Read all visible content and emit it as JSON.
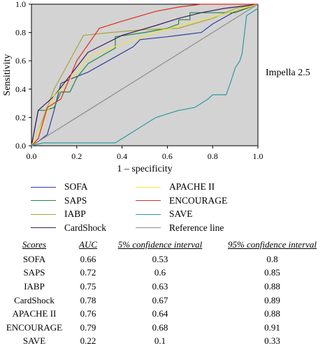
{
  "chart_data": {
    "type": "line",
    "title": "",
    "annotation": "Impella 2.5",
    "xlabel": "1 – specificity",
    "ylabel": "Sensitivity",
    "xlim": [
      0,
      1
    ],
    "ylim": [
      0,
      1
    ],
    "x_ticks": [
      "0.0",
      "0.2",
      "0.4",
      "0.6",
      "0.8",
      "1.0"
    ],
    "y_ticks": [
      "0.0",
      "0.2",
      "0.4",
      "0.6",
      "0.8",
      "1.0"
    ],
    "background": "#d3d3d3",
    "grid": false,
    "legend_position": "bottom",
    "series": [
      {
        "name": "SOFA",
        "color": "#2b3f9e",
        "x": [
          0,
          0.03,
          0.07,
          0.1,
          0.13,
          0.17,
          0.25,
          0.35,
          0.45,
          0.48,
          0.6,
          0.75,
          0.8,
          0.9,
          1.0
        ],
        "y": [
          0,
          0.03,
          0.08,
          0.25,
          0.44,
          0.47,
          0.52,
          0.61,
          0.7,
          0.75,
          0.77,
          0.8,
          0.86,
          0.95,
          1.0
        ]
      },
      {
        "name": "SAPS",
        "color": "#1e8a3a",
        "x": [
          0,
          0.03,
          0.06,
          0.1,
          0.13,
          0.17,
          0.2,
          0.25,
          0.37,
          0.37,
          0.5,
          0.6,
          0.65,
          0.65,
          0.7,
          0.7,
          0.9,
          1.0
        ],
        "y": [
          0,
          0.25,
          0.25,
          0.27,
          0.38,
          0.38,
          0.48,
          0.58,
          0.69,
          0.77,
          0.8,
          0.83,
          0.86,
          0.89,
          0.89,
          0.94,
          0.94,
          1.0
        ]
      },
      {
        "name": "IABP",
        "color": "#a8a43c",
        "x": [
          0,
          0.03,
          0.1,
          0.23,
          0.35,
          0.5,
          0.65,
          0.8,
          0.9,
          1.0
        ],
        "y": [
          0,
          0.1,
          0.4,
          0.78,
          0.8,
          0.82,
          0.83,
          0.9,
          0.97,
          1.0
        ]
      },
      {
        "name": "CardShock",
        "color": "#3d1a5e",
        "x": [
          0,
          0.03,
          0.1,
          0.25,
          0.4,
          0.55,
          0.65,
          0.75,
          0.85,
          1.0
        ],
        "y": [
          0,
          0.25,
          0.35,
          0.66,
          0.78,
          0.85,
          0.9,
          0.94,
          0.97,
          1.0
        ]
      },
      {
        "name": "APACHE II",
        "color": "#f2e33c",
        "x": [
          0,
          0.03,
          0.1,
          0.2,
          0.25,
          0.4,
          0.55,
          0.7,
          0.85,
          1.0
        ],
        "y": [
          0,
          0.1,
          0.35,
          0.52,
          0.63,
          0.72,
          0.8,
          0.87,
          0.93,
          1.0
        ]
      },
      {
        "name": "ENCOURAGE",
        "color": "#e02a1f",
        "x": [
          0,
          0.03,
          0.07,
          0.13,
          0.2,
          0.3,
          0.4,
          0.55,
          0.65,
          0.75,
          0.82,
          1.0
        ],
        "y": [
          0,
          0.05,
          0.27,
          0.33,
          0.6,
          0.83,
          0.88,
          0.95,
          0.98,
          1.0,
          1.0,
          1.0
        ]
      },
      {
        "name": "SAVE",
        "color": "#2b9aa0",
        "x": [
          0,
          0.05,
          0.37,
          0.55,
          0.65,
          0.72,
          0.75,
          0.78,
          0.8,
          0.85,
          0.86,
          0.88,
          0.9,
          0.92,
          0.93,
          0.95,
          1.0
        ],
        "y": [
          0,
          0.02,
          0.02,
          0.2,
          0.25,
          0.27,
          0.3,
          0.33,
          0.36,
          0.36,
          0.36,
          0.45,
          0.55,
          0.6,
          0.65,
          0.92,
          0.97
        ]
      },
      {
        "name": "Reference line",
        "color": "#8c8c8c",
        "x": [
          0,
          1
        ],
        "y": [
          0,
          1
        ]
      }
    ]
  },
  "legend": {
    "items": [
      {
        "label": "SOFA",
        "color": "#2b3f9e"
      },
      {
        "label": "APACHE II",
        "color": "#f2e33c"
      },
      {
        "label": "SAPS",
        "color": "#1e8a3a"
      },
      {
        "label": "ENCOURAGE",
        "color": "#e02a1f"
      },
      {
        "label": "IABP",
        "color": "#a8a43c"
      },
      {
        "label": "SAVE",
        "color": "#2b9aa0"
      },
      {
        "label": "CardShock",
        "color": "#3d1a5e"
      },
      {
        "label": "Reference line",
        "color": "#8c8c8c"
      }
    ]
  },
  "table": {
    "headers": [
      "Scores",
      "AUC",
      "5% confidence interval",
      "95% confidence interval"
    ],
    "rows": [
      [
        "SOFA",
        "0.66",
        "0.53",
        "0.8"
      ],
      [
        "SAPS",
        "0.72",
        "0.6",
        "0.85"
      ],
      [
        "IABP",
        "0.75",
        "0.63",
        "0.88"
      ],
      [
        "CardShock",
        "0.78",
        "0.67",
        "0.89"
      ],
      [
        "APACHE II",
        "0.76",
        "0.64",
        "0.88"
      ],
      [
        "ENCOURAGE",
        "0.79",
        "0.68",
        "0.91"
      ],
      [
        "SAVE",
        "0.22",
        "0.1",
        "0.33"
      ]
    ]
  }
}
